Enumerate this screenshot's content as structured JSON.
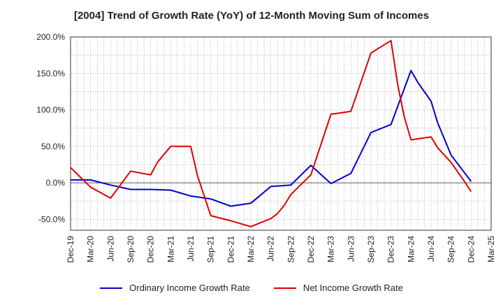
{
  "chart_data": {
    "type": "line",
    "title": "[2004]  Trend of Growth Rate (YoY) of 12-Month Moving Sum of Incomes",
    "xlabel": "",
    "ylabel": "",
    "ylim": [
      -65,
      200
    ],
    "y_ticks": [
      200,
      150,
      100,
      50,
      0,
      -50
    ],
    "y_tick_labels": [
      "200.0%",
      "150.0%",
      "100.0%",
      "50.0%",
      "0.0%",
      "-50.0%"
    ],
    "x_tick_labels": [
      "Dec-19",
      "Mar-20",
      "Jun-20",
      "Sep-20",
      "Dec-20",
      "Mar-21",
      "Jun-21",
      "Sep-21",
      "Dec-21",
      "Mar-22",
      "Jun-22",
      "Sep-22",
      "Dec-22",
      "Mar-23",
      "Jun-23",
      "Sep-23",
      "Dec-23",
      "Mar-24",
      "Jun-24",
      "Sep-24",
      "Dec-24",
      "Mar-25"
    ],
    "grid": true,
    "legend_position": "bottom",
    "series": [
      {
        "name": "Ordinary Income Growth Rate",
        "color": "#0000cc",
        "x": [
          "Dec-19",
          "Mar-20",
          "Jun-20",
          "Sep-20",
          "Dec-20",
          "Mar-21",
          "Jun-21",
          "Sep-21",
          "Dec-21",
          "Mar-22",
          "Jun-22",
          "Sep-22",
          "Dec-22",
          "Mar-23",
          "Jun-23",
          "Sep-23",
          "Dec-23",
          "Mar-24",
          "Apr-24",
          "Jun-24",
          "Jul-24",
          "Sep-24",
          "Dec-24"
        ],
        "values": [
          4,
          4,
          -3,
          -9,
          -9,
          -10,
          -18,
          -22,
          -32,
          -28,
          -5,
          -3,
          24,
          -1,
          13,
          69,
          80,
          154,
          138,
          112,
          82,
          38,
          2
        ]
      },
      {
        "name": "Net Income Growth Rate",
        "color": "#dd0000",
        "x": [
          "Dec-19",
          "Mar-20",
          "Jun-20",
          "Sep-20",
          "Dec-20",
          "Jan-21",
          "Mar-21",
          "Jun-21",
          "Jul-21",
          "Sep-21",
          "Dec-21",
          "Mar-22",
          "Jun-22",
          "Jul-22",
          "Aug-22",
          "Sep-22",
          "Dec-22",
          "Mar-23",
          "Jun-23",
          "Sep-23",
          "Dec-23",
          "Jan-24",
          "Feb-24",
          "Mar-24",
          "Jun-24",
          "Jul-24",
          "Sep-24",
          "Nov-24",
          "Dec-24"
        ],
        "values": [
          21,
          -6,
          -21,
          16,
          11,
          28,
          50,
          50,
          10,
          -45,
          -52,
          -60,
          -49,
          -42,
          -31,
          -16,
          11,
          94,
          98,
          178,
          195,
          135,
          90,
          59,
          63,
          48,
          28,
          2,
          -12
        ]
      }
    ]
  }
}
